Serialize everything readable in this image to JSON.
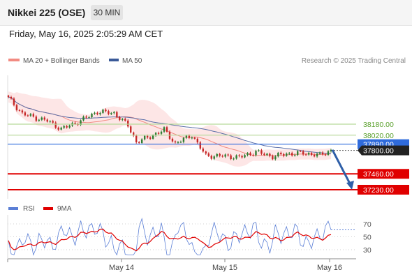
{
  "header": {
    "title": "Nikkei 225 (OSE)",
    "timeframe": "30 MIN"
  },
  "datetime": "Friday, May 16, 2025 2:05:29 AM CET",
  "legend": {
    "items": [
      {
        "label": "MA 20 + Bollinger Bands",
        "color": "#f28b82"
      },
      {
        "label": "MA 50",
        "color": "#3a5a98"
      }
    ],
    "credit": "Research © 2025 Trading Central"
  },
  "colors": {
    "up": "#2e7d32",
    "down": "#c62828",
    "bb_fill": "#fde2e2",
    "ma20": "#f28b82",
    "ma50": "#5b6fa8",
    "resistance": "#b7d99a",
    "resistance_text": "#5aa02c",
    "support": "#e00000",
    "pivot": "#2f6bdc",
    "last": "#222222",
    "arrow": "#2f5fa8",
    "rsi": "#5b7fd6",
    "rsi_ma": "#e00000"
  },
  "chart_data": {
    "type": "candlestick",
    "price_axis": {
      "min": 37100,
      "max": 38600
    },
    "x_ticks": [
      "May 14",
      "May 15",
      "May 16"
    ],
    "anchors": [
      {
        "i": 0,
        "v": 38560
      },
      {
        "i": 5,
        "v": 38330
      },
      {
        "i": 10,
        "v": 38270
      },
      {
        "i": 14,
        "v": 38230
      },
      {
        "i": 19,
        "v": 38110
      },
      {
        "i": 25,
        "v": 38210
      },
      {
        "i": 32,
        "v": 38360
      },
      {
        "i": 38,
        "v": 38340
      },
      {
        "i": 43,
        "v": 38160
      },
      {
        "i": 46,
        "v": 37920
      },
      {
        "i": 51,
        "v": 38000
      },
      {
        "i": 56,
        "v": 38100
      },
      {
        "i": 60,
        "v": 37900
      },
      {
        "i": 66,
        "v": 38020
      },
      {
        "i": 71,
        "v": 37720
      },
      {
        "i": 77,
        "v": 37720
      },
      {
        "i": 83,
        "v": 37700
      },
      {
        "i": 89,
        "v": 37780
      },
      {
        "i": 95,
        "v": 37710
      },
      {
        "i": 100,
        "v": 37750
      },
      {
        "i": 106,
        "v": 37760
      },
      {
        "i": 112,
        "v": 37730
      },
      {
        "i": 116,
        "v": 37800
      }
    ],
    "levels": {
      "resistance": [
        {
          "value": 38180,
          "label": "38180.00"
        },
        {
          "value": 38020,
          "label": "38020.00"
        }
      ],
      "pivot": {
        "value": 37890,
        "label": "37890.00"
      },
      "last": {
        "value": 37800,
        "label": "37800.00"
      },
      "support": [
        {
          "value": 37460,
          "label": "37460.00"
        },
        {
          "value": 37230,
          "label": "37230.00"
        }
      ]
    },
    "rsi": {
      "legend": [
        {
          "label": "RSI",
          "color": "#5b7fd6"
        },
        {
          "label": "9MA",
          "color": "#e00000"
        }
      ],
      "levels": [
        70,
        50,
        30
      ],
      "min": 15,
      "max": 85
    }
  }
}
